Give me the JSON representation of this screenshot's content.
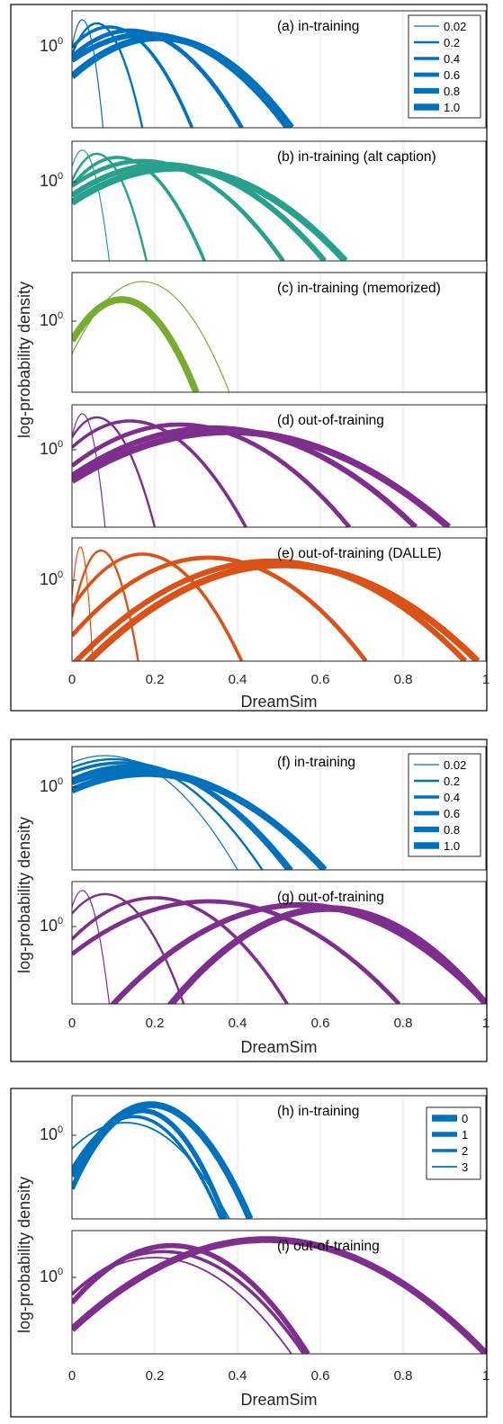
{
  "chart_data": [
    {
      "type": "line",
      "id": "group-1",
      "ylabel": "log-probability density",
      "xlabel": "DreamSim",
      "xlim": [
        0,
        1
      ],
      "xticks": [
        "0",
        "0.2",
        "0.4",
        "0.6",
        "0.8",
        "1"
      ],
      "ytick_label": "10⁰",
      "grid": "vertical",
      "legend_placement": "top-right",
      "legend": [
        "0.02",
        "0.2",
        "0.4",
        "0.6",
        "0.8",
        "1.0"
      ],
      "panels": [
        {
          "label": "(a) in-training",
          "color": "#0072BD",
          "series": [
            {
              "name": "0.02",
              "peak_x": 0.025,
              "end_x": 0.075
            },
            {
              "name": "0.2",
              "peak_x": 0.06,
              "end_x": 0.17
            },
            {
              "name": "0.4",
              "peak_x": 0.09,
              "end_x": 0.29
            },
            {
              "name": "0.6",
              "peak_x": 0.14,
              "end_x": 0.41
            },
            {
              "name": "0.8",
              "peak_x": 0.18,
              "end_x": 0.52
            },
            {
              "name": "1.0",
              "peak_x": 0.21,
              "end_x": 0.53
            }
          ]
        },
        {
          "label": "(b) in-training (alt caption)",
          "color": "#27A08C",
          "series": [
            {
              "name": "0.02",
              "peak_x": 0.025,
              "end_x": 0.09
            },
            {
              "name": "0.2",
              "peak_x": 0.06,
              "end_x": 0.18
            },
            {
              "name": "0.4",
              "peak_x": 0.11,
              "end_x": 0.32
            },
            {
              "name": "0.6",
              "peak_x": 0.17,
              "end_x": 0.51
            },
            {
              "name": "0.8",
              "peak_x": 0.22,
              "end_x": 0.61
            },
            {
              "name": "1.0",
              "peak_x": 0.25,
              "end_x": 0.66
            }
          ]
        },
        {
          "label": "(c) in-training (memorized)",
          "color": "#77AC30",
          "series": [
            {
              "name": "0.02",
              "peak_x": 0.17,
              "end_x": 0.38
            },
            {
              "name": "1.0",
              "peak_x": 0.12,
              "end_x": 0.3
            }
          ]
        },
        {
          "label": "(d) out-of-training",
          "color": "#7E2F8E",
          "series": [
            {
              "name": "0.02",
              "peak_x": 0.025,
              "end_x": 0.08
            },
            {
              "name": "0.2",
              "peak_x": 0.06,
              "end_x": 0.2
            },
            {
              "name": "0.4",
              "peak_x": 0.14,
              "end_x": 0.42
            },
            {
              "name": "0.6",
              "peak_x": 0.26,
              "end_x": 0.67
            },
            {
              "name": "0.8",
              "peak_x": 0.34,
              "end_x": 0.83
            },
            {
              "name": "1.0",
              "peak_x": 0.38,
              "end_x": 0.91
            }
          ]
        },
        {
          "label": "(e) out-of-training (DALLE)",
          "color": "#D95319",
          "series": [
            {
              "name": "0.02",
              "peak_x": 0.02,
              "end_x": 0.05
            },
            {
              "name": "0.2",
              "peak_x": 0.07,
              "end_x": 0.16
            },
            {
              "name": "0.4",
              "peak_x": 0.17,
              "end_x": 0.41
            },
            {
              "name": "0.6",
              "peak_x": 0.33,
              "end_x": 0.71
            },
            {
              "name": "0.8",
              "peak_x": 0.48,
              "end_x": 0.95
            },
            {
              "name": "1.0",
              "peak_x": 0.51,
              "end_x": 0.98
            }
          ]
        }
      ]
    },
    {
      "type": "line",
      "id": "group-2",
      "ylabel": "log-probability density",
      "xlabel": "DreamSim",
      "xlim": [
        0,
        1
      ],
      "xticks": [
        "0",
        "0.2",
        "0.4",
        "0.6",
        "0.8",
        "1"
      ],
      "ytick_label": "10⁰",
      "grid": "vertical",
      "legend_placement": "top-right",
      "legend": [
        "0.02",
        "0.2",
        "0.4",
        "0.6",
        "0.8",
        "1.0"
      ],
      "panels": [
        {
          "label": "(f) in-training",
          "color": "#0072BD",
          "series": [
            {
              "name": "0.02",
              "peak_x": 0.08,
              "end_x": 0.4
            },
            {
              "name": "0.2",
              "peak_x": 0.1,
              "end_x": 0.46
            },
            {
              "name": "0.4",
              "peak_x": 0.12,
              "end_x": 0.52
            },
            {
              "name": "0.6",
              "peak_x": 0.14,
              "end_x": 0.53
            },
            {
              "name": "0.8",
              "peak_x": 0.16,
              "end_x": 0.61
            },
            {
              "name": "1.0",
              "peak_x": 0.18,
              "end_x": 0.61
            }
          ]
        },
        {
          "label": "(g) out-of-training",
          "color": "#7E2F8E",
          "series": [
            {
              "name": "0.02",
              "peak_x": 0.025,
              "end_x": 0.09
            },
            {
              "name": "0.2",
              "peak_x": 0.08,
              "end_x": 0.27
            },
            {
              "name": "0.4",
              "peak_x": 0.2,
              "end_x": 0.52
            },
            {
              "name": "0.6",
              "peak_x": 0.33,
              "end_x": 0.79
            },
            {
              "name": "0.8",
              "peak_x": 0.55,
              "end_x": 1.0
            },
            {
              "name": "1.0",
              "peak_x": 0.62,
              "end_x": 1.0
            }
          ]
        }
      ]
    },
    {
      "type": "line",
      "id": "group-3",
      "ylabel": "log-probability density",
      "xlabel": "DreamSim",
      "xlim": [
        0,
        1
      ],
      "xticks": [
        "0",
        "0.2",
        "0.4",
        "0.6",
        "0.8",
        "1"
      ],
      "ytick_label": "10⁰",
      "grid": "vertical",
      "legend_placement": "top-right",
      "legend": [
        "0",
        "1",
        "2",
        "3"
      ],
      "panels": [
        {
          "label": "(h) in-training",
          "color": "#0072BD",
          "series": [
            {
              "name": "0",
              "peak_x": 0.19,
              "end_x": 0.43
            },
            {
              "name": "1",
              "peak_x": 0.17,
              "end_x": 0.37
            },
            {
              "name": "2",
              "peak_x": 0.15,
              "end_x": 0.36
            },
            {
              "name": "3",
              "peak_x": 0.13,
              "end_x": 0.38
            }
          ]
        },
        {
          "label": "(i) out-of-training",
          "color": "#7E2F8E",
          "series": [
            {
              "name": "0",
              "peak_x": 0.47,
              "end_x": 1.0
            },
            {
              "name": "1",
              "peak_x": 0.24,
              "end_x": 0.57
            },
            {
              "name": "2",
              "peak_x": 0.22,
              "end_x": 0.56
            },
            {
              "name": "3",
              "peak_x": 0.2,
              "end_x": 0.53
            }
          ]
        }
      ]
    }
  ]
}
